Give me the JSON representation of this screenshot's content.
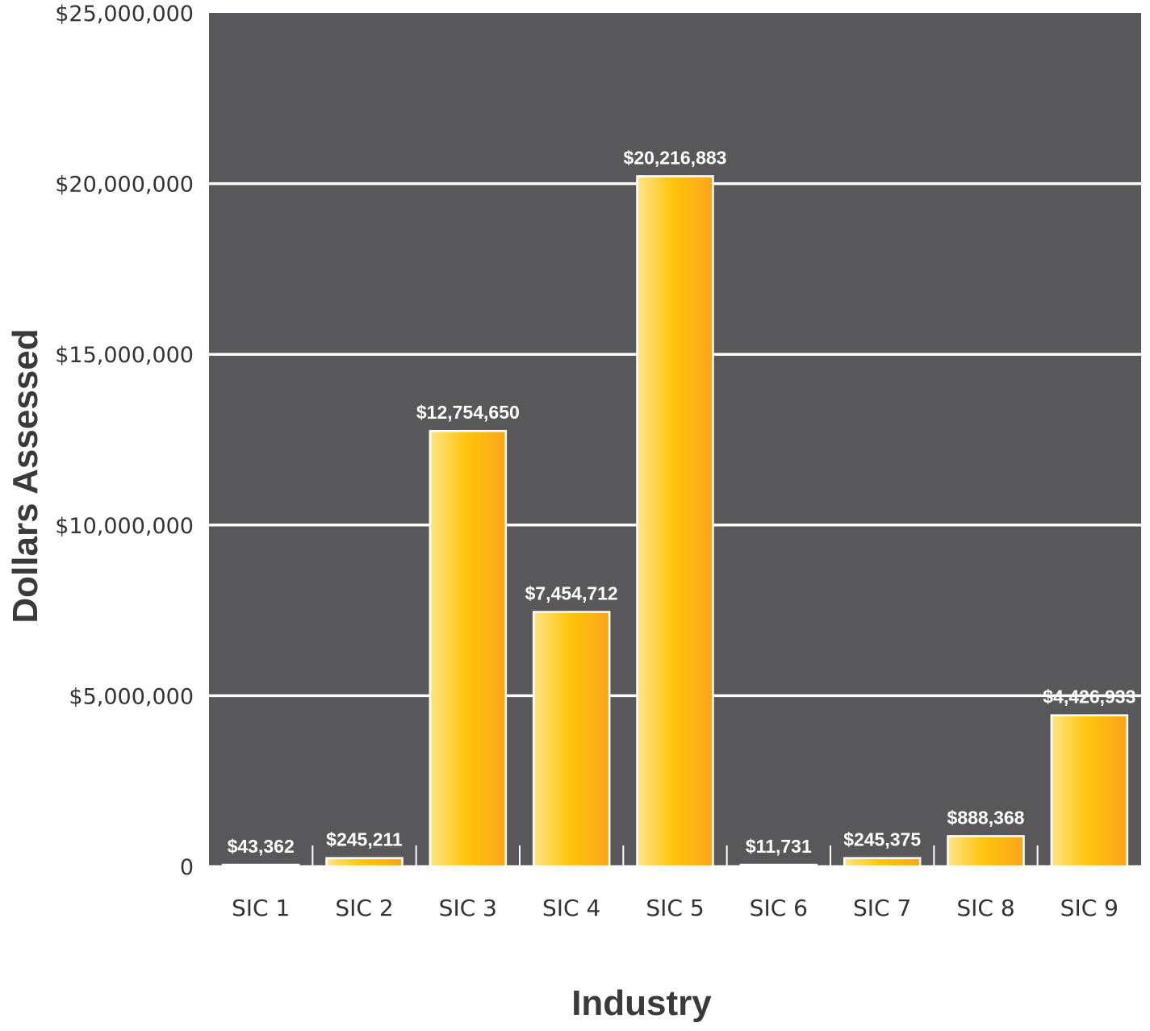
{
  "chart_data": {
    "type": "bar",
    "title": "",
    "xlabel": "Industry",
    "ylabel": "Dollars  Assessed",
    "categories": [
      "SIC 1",
      "SIC 2",
      "SIC 3",
      "SIC 4",
      "SIC 5",
      "SIC 6",
      "SIC 7",
      "SIC 8",
      "SIC 9"
    ],
    "values": [
      43362,
      245211,
      12754650,
      7454712,
      20216883,
      11731,
      245375,
      888368,
      4426933
    ],
    "value_labels": [
      "$43,362",
      "$245,211",
      "$12,754,650",
      "$7,454,712",
      "$20,216,883",
      "$11,731",
      "$245,375",
      "$888,368",
      "$4,426,933"
    ],
    "ylim": [
      0,
      25000000
    ],
    "yticks": [
      0,
      5000000,
      10000000,
      15000000,
      20000000,
      25000000
    ],
    "ytick_labels": [
      "0",
      "$5,000,000",
      "$10,000,000",
      "$15,000,000",
      "$20,000,000",
      "$25,000,000"
    ],
    "grid": true,
    "legend": "none",
    "colors": {
      "plot_background": "#58585a",
      "grid": "#ffffff",
      "bar_light": "#fde58a",
      "bar_mid": "#fec60e",
      "bar_dark": "#f9a61a",
      "bar_outline": "#ffffff"
    }
  }
}
